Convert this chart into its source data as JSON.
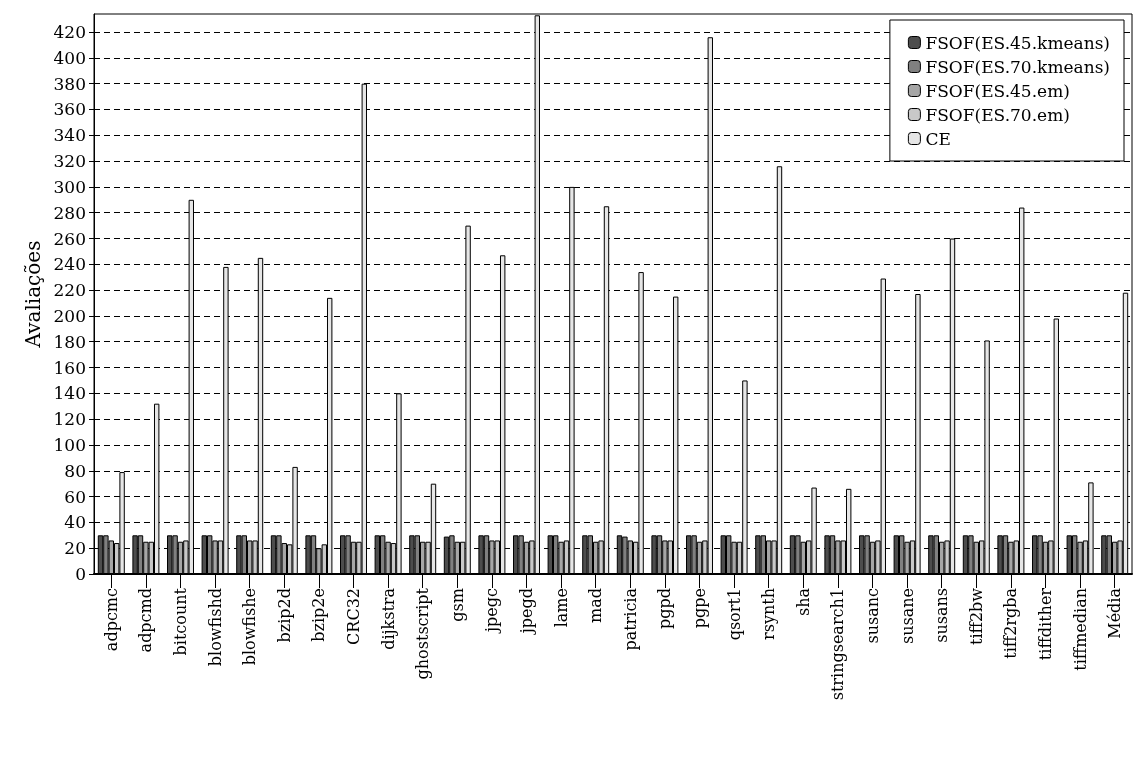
{
  "chart_data": {
    "type": "bar",
    "ylabel": "Avaliações",
    "categories": [
      "adpcmc",
      "adpcmd",
      "bitcount",
      "blowfishd",
      "blowfishe",
      "bzip2d",
      "bzip2e",
      "CRC32",
      "dijkstra",
      "ghostscript",
      "gsm",
      "jpegc",
      "jpegd",
      "lame",
      "mad",
      "patricia",
      "pgpd",
      "pgpe",
      "qsort1",
      "rsynth",
      "sha",
      "stringsearch1",
      "susanc",
      "susane",
      "susans",
      "tiff2bw",
      "tiff2rgba",
      "tiffdither",
      "tiffmedian",
      "Média"
    ],
    "series": [
      {
        "name": "FSOF(ES.45.kmeans)",
        "color": "#4d4d4d",
        "values": [
          30,
          30,
          30,
          30,
          30,
          30,
          30,
          30,
          30,
          30,
          29,
          30,
          30,
          30,
          30,
          30,
          30,
          30,
          30,
          30,
          30,
          30,
          30,
          30,
          30,
          30,
          30,
          30,
          30,
          30
        ]
      },
      {
        "name": "FSOF(ES.70.kmeans)",
        "color": "#808080",
        "values": [
          30,
          30,
          30,
          30,
          30,
          30,
          30,
          30,
          30,
          30,
          30,
          30,
          30,
          30,
          30,
          29,
          30,
          30,
          30,
          30,
          30,
          30,
          30,
          30,
          30,
          30,
          30,
          30,
          30,
          30
        ]
      },
      {
        "name": "FSOF(ES.45.em)",
        "color": "#a6a6a6",
        "values": [
          26,
          25,
          25,
          26,
          26,
          24,
          20,
          25,
          25,
          25,
          25,
          26,
          25,
          25,
          25,
          26,
          26,
          25,
          25,
          26,
          25,
          26,
          25,
          25,
          25,
          25,
          25,
          25,
          25,
          25
        ]
      },
      {
        "name": "FSOF(ES.70.em)",
        "color": "#c8c8c8",
        "values": [
          24,
          25,
          26,
          26,
          26,
          23,
          23,
          25,
          24,
          25,
          25,
          26,
          26,
          26,
          26,
          25,
          26,
          26,
          25,
          26,
          26,
          26,
          26,
          26,
          26,
          26,
          26,
          26,
          26,
          26
        ]
      },
      {
        "name": "CE",
        "color": "#e6e6e6",
        "values": [
          79,
          132,
          290,
          238,
          245,
          83,
          214,
          380,
          140,
          70,
          270,
          247,
          433,
          300,
          285,
          234,
          215,
          416,
          150,
          316,
          67,
          66,
          229,
          217,
          260,
          181,
          284,
          198,
          71,
          218
        ]
      }
    ],
    "ylim": [
      0,
      434
    ],
    "yticks": [
      0,
      20,
      40,
      60,
      80,
      100,
      120,
      140,
      160,
      180,
      200,
      220,
      240,
      260,
      280,
      300,
      320,
      340,
      360,
      380,
      400,
      420
    ],
    "grid": "y",
    "legend": "top right"
  }
}
